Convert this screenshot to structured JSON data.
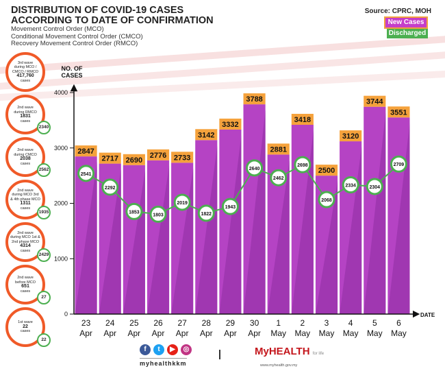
{
  "header": {
    "title_line1": "DISTRIBUTION OF COVID-19 CASES",
    "title_line2": "ACCORDING TO DATE OF CONFIRMATION",
    "sub1": "Movement Control Order (MCO)",
    "sub2": "Conditional Movement Control Order (CMCO)",
    "sub3": "Recovery Movement Control Order (RMCO)",
    "source": "Source: CPRC, MOH"
  },
  "legend": {
    "new_cases": "New Cases",
    "discharged": "Discharged"
  },
  "waves": [
    {
      "l1": "3rd wave",
      "l2": "during MCO /",
      "l3": "CMCO / RMCO",
      "num": "417,760",
      "l4": "cases",
      "badge": ""
    },
    {
      "l1": "2nd wave",
      "l2": "during RMCO",
      "l3": "",
      "num": "1831",
      "l4": "cases",
      "badge": "2340"
    },
    {
      "l1": "2nd wave",
      "l2": "during CMCO",
      "l3": "",
      "num": "2038",
      "l4": "cases",
      "badge": "2562"
    },
    {
      "l1": "2nd wave",
      "l2": "during MCO 3rd",
      "l3": "& 4th phase MCO",
      "num": "1311",
      "l4": "cases",
      "badge": "1935"
    },
    {
      "l1": "2nd wave",
      "l2": "during MCO 1st &",
      "l3": "2nd phase MCO",
      "num": "4314",
      "l4": "cases",
      "badge": "2429"
    },
    {
      "l1": "2nd wave",
      "l2": "before MCO",
      "l3": "",
      "num": "651",
      "l4": "cases",
      "badge": "27"
    },
    {
      "l1": "1st wave",
      "l2": "",
      "l3": "",
      "num": "22",
      "l4": "cases",
      "badge": "22"
    }
  ],
  "footer": {
    "handle": "myhealthkkm",
    "logo": "MyHEALTH",
    "tagline": "for life",
    "url": "www.myhealth.gov.my"
  },
  "colors": {
    "bar": "#b543c4",
    "bar_dark": "#8e2da3",
    "label_bg": "#f5a23c",
    "line": "#4caf50"
  },
  "chart_data": {
    "type": "bar",
    "title": "DISTRIBUTION OF COVID-19 CASES ACCORDING TO DATE OF CONFIRMATION",
    "xlabel": "DATE",
    "ylabel": "NO. OF CASES",
    "ylim": [
      0,
      4000
    ],
    "yticks": [
      "0",
      "1000",
      "2000",
      "3000",
      "4000"
    ],
    "categories": [
      [
        "23",
        "Apr"
      ],
      [
        "24",
        "Apr"
      ],
      [
        "25",
        "Apr"
      ],
      [
        "26",
        "Apr"
      ],
      [
        "27",
        "Apr"
      ],
      [
        "28",
        "Apr"
      ],
      [
        "29",
        "Apr"
      ],
      [
        "30",
        "Apr"
      ],
      [
        "1",
        "May"
      ],
      [
        "2",
        "May"
      ],
      [
        "3",
        "May"
      ],
      [
        "4",
        "May"
      ],
      [
        "5",
        "May"
      ],
      [
        "6",
        "May"
      ]
    ],
    "series": [
      {
        "name": "New Cases",
        "type": "bar",
        "values": [
          2847,
          2717,
          2690,
          2776,
          2733,
          3142,
          3332,
          3788,
          2881,
          3418,
          2500,
          3120,
          3744,
          3551
        ]
      },
      {
        "name": "Discharged",
        "type": "line",
        "values": [
          2541,
          2292,
          1853,
          1803,
          2019,
          1822,
          1943,
          2640,
          2462,
          2698,
          2068,
          2334,
          2304,
          2709
        ]
      }
    ]
  }
}
